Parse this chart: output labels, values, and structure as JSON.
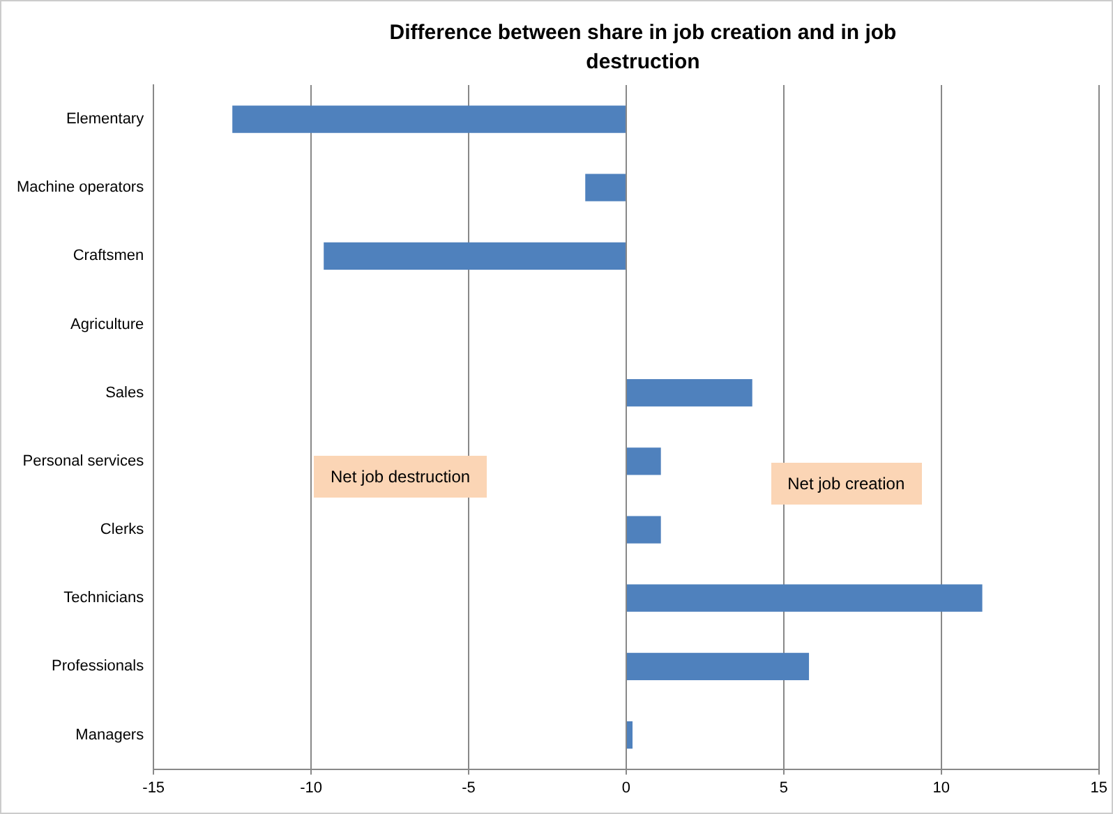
{
  "chart_data": {
    "type": "bar",
    "orientation": "horizontal",
    "title": "Difference between share in job creation and in job destruction",
    "categories": [
      "Elementary",
      "Machine operators",
      "Craftsmen",
      "Agriculture",
      "Sales",
      "Personal services",
      "Clerks",
      "Technicians",
      "Professionals",
      "Managers"
    ],
    "values": [
      -12.5,
      -1.3,
      -9.6,
      0,
      4.0,
      1.1,
      1.1,
      11.3,
      5.8,
      0.2
    ],
    "color": "#4f81bd",
    "xlim": [
      -15,
      15
    ],
    "xticks": [
      -15,
      -10,
      -5,
      0,
      5,
      10,
      15
    ],
    "grid": "x",
    "legend": false,
    "annotations": [
      "Net job destruction",
      "Net job creation"
    ]
  }
}
